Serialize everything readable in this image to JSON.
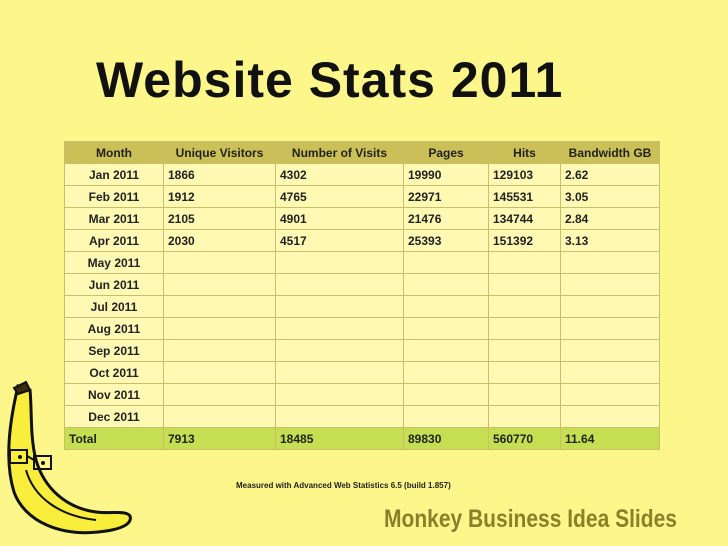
{
  "slide": {
    "title": "Website Stats 2011",
    "footnote": "Measured with Advanced Web Statistics 6.5 (build 1.857)",
    "brand": "Monkey Business Idea Slides",
    "colors": {
      "background": "#fdf68a",
      "header": "#cbc057",
      "row": "#fff9b4",
      "total_row": "#c6df52",
      "brand_text": "#8a7f2a"
    }
  },
  "table": {
    "headers": [
      "Month",
      "Unique Visitors",
      "Number of Visits",
      "Pages",
      "Hits",
      "Bandwidth GB"
    ],
    "rows": [
      [
        "Jan 2011",
        "1866",
        "4302",
        "19990",
        "129103",
        "2.62"
      ],
      [
        "Feb 2011",
        "1912",
        "4765",
        "22971",
        "145531",
        "3.05"
      ],
      [
        "Mar 2011",
        "2105",
        "4901",
        "21476",
        "134744",
        "2.84"
      ],
      [
        "Apr 2011",
        "2030",
        "4517",
        "25393",
        "151392",
        "3.13"
      ],
      [
        "May 2011",
        "",
        "",
        "",
        "",
        ""
      ],
      [
        "Jun 2011",
        "",
        "",
        "",
        "",
        ""
      ],
      [
        "Jul 2011",
        "",
        "",
        "",
        "",
        ""
      ],
      [
        "Aug 2011",
        "",
        "",
        "",
        "",
        ""
      ],
      [
        "Sep 2011",
        "",
        "",
        "",
        "",
        ""
      ],
      [
        "Oct 2011",
        "",
        "",
        "",
        "",
        ""
      ],
      [
        "Nov 2011",
        "",
        "",
        "",
        "",
        ""
      ],
      [
        "Dec 2011",
        "",
        "",
        "",
        "",
        ""
      ]
    ],
    "total": [
      "Total",
      "7913",
      "18485",
      "89830",
      "560770",
      "11.64"
    ]
  }
}
